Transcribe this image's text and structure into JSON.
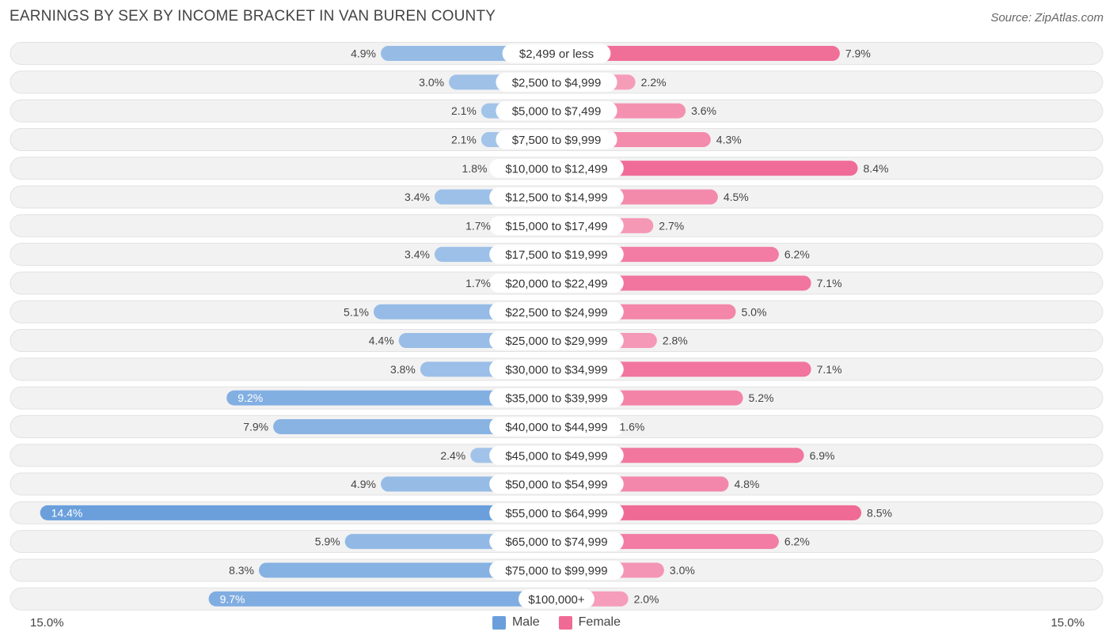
{
  "title": "EARNINGS BY SEX BY INCOME BRACKET IN VAN BUREN COUNTY",
  "source": "Source: ZipAtlas.com",
  "colors": {
    "male": "#6a9fdc",
    "female": "#f06a96",
    "row_bg": "#f2f2f2"
  },
  "chart_data": {
    "type": "bar",
    "orientation": "diverging-horizontal",
    "categories": [
      "$2,499 or less",
      "$2,500 to $4,999",
      "$5,000 to $7,499",
      "$7,500 to $9,999",
      "$10,000 to $12,499",
      "$12,500 to $14,999",
      "$15,000 to $17,499",
      "$17,500 to $19,999",
      "$20,000 to $22,499",
      "$22,500 to $24,999",
      "$25,000 to $29,999",
      "$30,000 to $34,999",
      "$35,000 to $39,999",
      "$40,000 to $44,999",
      "$45,000 to $49,999",
      "$50,000 to $54,999",
      "$55,000 to $64,999",
      "$65,000 to $74,999",
      "$75,000 to $99,999",
      "$100,000+"
    ],
    "series": [
      {
        "name": "Male",
        "values": [
          4.9,
          3.0,
          2.1,
          2.1,
          1.8,
          3.4,
          1.7,
          3.4,
          1.7,
          5.1,
          4.4,
          3.8,
          9.2,
          7.9,
          2.4,
          4.9,
          14.4,
          5.9,
          8.3,
          9.7
        ]
      },
      {
        "name": "Female",
        "values": [
          7.9,
          2.2,
          3.6,
          4.3,
          8.4,
          4.5,
          2.7,
          6.2,
          7.1,
          5.0,
          2.8,
          7.1,
          5.2,
          1.6,
          6.9,
          4.8,
          8.5,
          6.2,
          3.0,
          2.0
        ]
      }
    ],
    "value_labels": {
      "male": [
        "4.9%",
        "3.0%",
        "2.1%",
        "2.1%",
        "1.8%",
        "3.4%",
        "1.7%",
        "3.4%",
        "1.7%",
        "5.1%",
        "4.4%",
        "3.8%",
        "9.2%",
        "7.9%",
        "2.4%",
        "4.9%",
        "14.4%",
        "5.9%",
        "8.3%",
        "9.7%"
      ],
      "female": [
        "7.9%",
        "2.2%",
        "3.6%",
        "4.3%",
        "8.4%",
        "4.5%",
        "2.7%",
        "6.2%",
        "7.1%",
        "5.0%",
        "2.8%",
        "7.1%",
        "5.2%",
        "1.6%",
        "6.9%",
        "4.8%",
        "8.5%",
        "6.2%",
        "3.0%",
        "2.0%"
      ]
    },
    "xlim": [
      -15.0,
      15.0
    ],
    "axis_labels": {
      "left": "15.0%",
      "right": "15.0%"
    },
    "legend": [
      "Male",
      "Female"
    ],
    "legend_position": "bottom-center"
  }
}
